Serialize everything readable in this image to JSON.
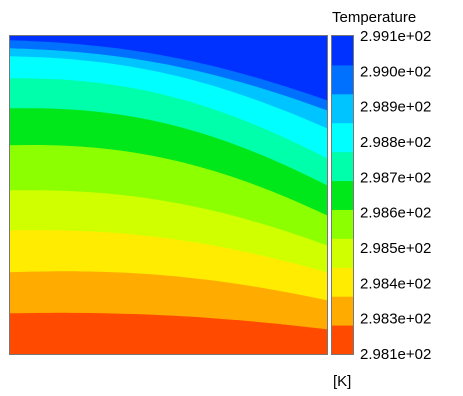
{
  "chart_data": {
    "type": "heatmap",
    "title": "",
    "legend_title": "Temperature",
    "unit_label": "[K]",
    "legend_placement": "right",
    "grid": false,
    "levels": [
      {
        "label": "2.981e+02",
        "value": 298.1
      },
      {
        "label": "2.983e+02",
        "value": 298.3
      },
      {
        "label": "2.984e+02",
        "value": 298.4
      },
      {
        "label": "2.985e+02",
        "value": 298.5
      },
      {
        "label": "2.986e+02",
        "value": 298.6
      },
      {
        "label": "2.987e+02",
        "value": 298.7
      },
      {
        "label": "2.988e+02",
        "value": 298.8
      },
      {
        "label": "2.989e+02",
        "value": 298.9
      },
      {
        "label": "2.990e+02",
        "value": 299.0
      },
      {
        "label": "2.991e+02",
        "value": 299.1
      }
    ],
    "bands": [
      {
        "index": 0,
        "color": "#ff4a00"
      },
      {
        "index": 1,
        "color": "#ffab00"
      },
      {
        "index": 2,
        "color": "#ffec00"
      },
      {
        "index": 3,
        "color": "#d0ff00"
      },
      {
        "index": 4,
        "color": "#8cff00"
      },
      {
        "index": 5,
        "color": "#00e81a"
      },
      {
        "index": 6,
        "color": "#00ffaa"
      },
      {
        "index": 7,
        "color": "#00ffff"
      },
      {
        "index": 8,
        "color": "#00c4ff"
      },
      {
        "index": 9,
        "color": "#0070ff"
      },
      {
        "index": 10,
        "color": "#0032ff"
      }
    ],
    "color_min": 298.1,
    "color_max": 299.1
  }
}
